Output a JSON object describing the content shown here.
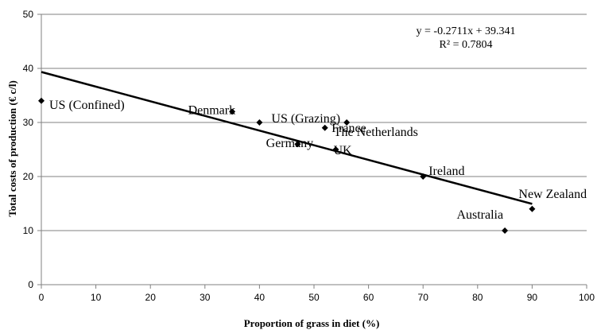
{
  "chart_data": {
    "type": "scatter",
    "xlabel": "Proportion of grass in diet (%)",
    "ylabel": "Total costs of production  (€ c/l)",
    "xlim": [
      0,
      100
    ],
    "ylim": [
      0,
      50
    ],
    "xticks": [
      "0",
      "10",
      "20",
      "30",
      "40",
      "50",
      "60",
      "70",
      "80",
      "90",
      "100"
    ],
    "yticks": [
      "0",
      "10",
      "20",
      "30",
      "40",
      "50"
    ],
    "grid": "horizontal",
    "points": [
      {
        "label": "US (Confined)",
        "x": 0,
        "y": 34
      },
      {
        "label": "Denmark",
        "x": 35,
        "y": 32
      },
      {
        "label": "US (Grazing)",
        "x": 40,
        "y": 30
      },
      {
        "label": "Germany",
        "x": 47,
        "y": 26
      },
      {
        "label": "The Netherlands",
        "x": 52,
        "y": 29
      },
      {
        "label": "UK",
        "x": 54,
        "y": 25
      },
      {
        "label": "France",
        "x": 56,
        "y": 30
      },
      {
        "label": "Ireland",
        "x": 70,
        "y": 20
      },
      {
        "label": "Australia",
        "x": 85,
        "y": 10
      },
      {
        "label": "New Zealand",
        "x": 90,
        "y": 14
      }
    ],
    "trendline": {
      "type": "linear",
      "slope": -0.2711,
      "intercept": 39.341,
      "x_range": [
        0,
        90
      ],
      "equation": "y = -0.2711x + 39.341",
      "r_squared": "R² = 0.7804"
    },
    "colors": {
      "marker": "#000000",
      "line": "#000000",
      "grid": "#808080"
    }
  }
}
